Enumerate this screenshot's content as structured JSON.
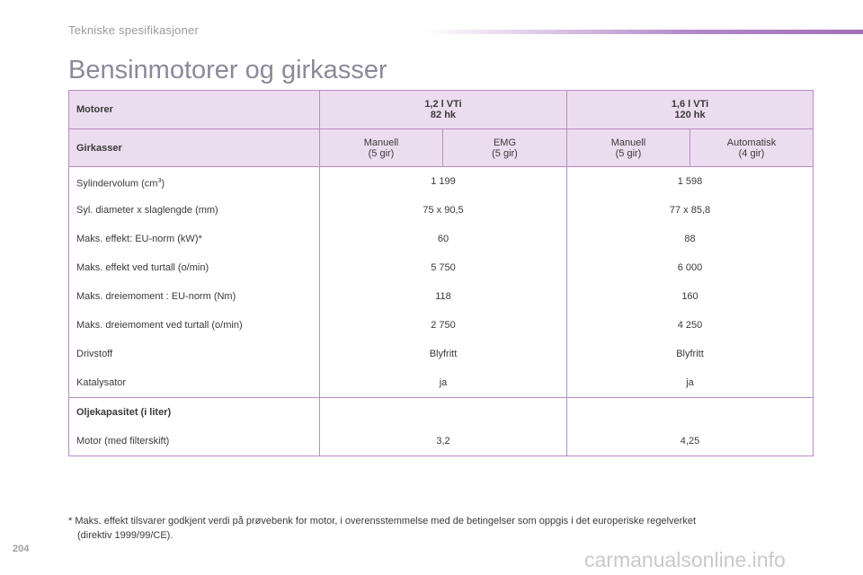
{
  "header": {
    "section": "Tekniske spesifikasjoner"
  },
  "title": "Bensinmotorer og girkasser",
  "table": {
    "motor_label": "Motorer",
    "engines": [
      {
        "name": "1,2 l VTi",
        "power": "82 hk"
      },
      {
        "name": "1,6 l VTi",
        "power": "120 hk"
      }
    ],
    "gear_label": "Girkasser",
    "gearboxes": [
      {
        "type": "Manuell",
        "gears": "(5 gir)"
      },
      {
        "type": "EMG",
        "gears": "(5 gir)"
      },
      {
        "type": "Manuell",
        "gears": "(5 gir)"
      },
      {
        "type": "Automatisk",
        "gears": "(4 gir)"
      }
    ],
    "cyl_label": "Sylindervolum (cm",
    "cyl_unit_sup": "3",
    "cyl_label_end": ")",
    "spec_rows": [
      {
        "label": "Sylindervolum (cm3)",
        "v1": "1 199",
        "v2": "1 598"
      },
      {
        "label": "Syl. diameter x slaglengde (mm)",
        "v1": "75 x 90,5",
        "v2": "77 x 85,8"
      },
      {
        "label": "Maks. effekt: EU-norm (kW)*",
        "v1": "60",
        "v2": "88"
      },
      {
        "label": "Maks. effekt ved turtall (o/min)",
        "v1": "5 750",
        "v2": "6 000"
      },
      {
        "label": "Maks. dreiemoment : EU-norm (Nm)",
        "v1": "118",
        "v2": "160"
      },
      {
        "label": "Maks. dreiemoment ved turtall (o/min)",
        "v1": "2 750",
        "v2": "4 250"
      },
      {
        "label": "Drivstoff",
        "v1": "Blyfritt",
        "v2": "Blyfritt"
      },
      {
        "label": "Katalysator",
        "v1": "ja",
        "v2": "ja"
      }
    ],
    "oil": {
      "heading": "Oljekapasitet (i liter)",
      "label": "Motor (med filterskift)",
      "v1": "3,2",
      "v2": "4,25"
    }
  },
  "footnote": {
    "line1": "* Maks. effekt tilsvarer godkjent verdi på prøvebenk for motor, i overensstemmelse med de betingelser som oppgis i det europeriske regelverket",
    "line2": "(direktiv 1999/99/CE)."
  },
  "page_number": "204",
  "watermark": "carmanualsonline.info"
}
